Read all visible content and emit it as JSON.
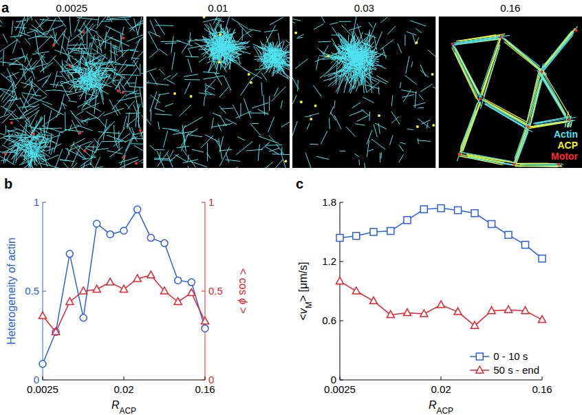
{
  "panel_a": {
    "panel": "a",
    "titles": [
      "0.0025",
      "0.01",
      "0.03",
      "0.16"
    ],
    "legend": [
      {
        "name": "Actin",
        "color": "#4fe3ef"
      },
      {
        "name": "ACP",
        "color": "#f5f51e"
      },
      {
        "name": "Motor",
        "color": "#ff2a2a"
      }
    ]
  },
  "chart_data": [
    {
      "type": "line",
      "panel": "b",
      "log": "x",
      "xlabel": [
        {
          "text": "R",
          "style": "italic"
        },
        {
          "text": "ACP",
          "style": "sub"
        }
      ],
      "ylabel": [
        {
          "text": "Heterogeneity of actin"
        }
      ],
      "y2label": [
        {
          "text": "< cos "
        },
        {
          "text": "ϕ",
          "style": "italic"
        },
        {
          "text": " >"
        }
      ],
      "x": [
        0.0025,
        0.0035,
        0.005,
        0.0071,
        0.01,
        0.0141,
        0.02,
        0.0283,
        0.04,
        0.0566,
        0.08,
        0.1131,
        0.16
      ],
      "xlim": [
        0.0025,
        0.16
      ],
      "xticks": [
        0.0025,
        0.02,
        0.16
      ],
      "ylim": [
        0,
        1
      ],
      "yticks": [
        0,
        0.5,
        1
      ],
      "y2lim": [
        0,
        1
      ],
      "y2ticks": [
        0,
        0.5,
        1
      ],
      "grid": false,
      "series": [
        {
          "color": "#2b5ce6",
          "marker": "circle",
          "axis": "y",
          "values": [
            0.09,
            0.27,
            0.71,
            0.35,
            0.88,
            0.82,
            0.84,
            0.96,
            0.8,
            0.77,
            0.56,
            0.55,
            0.29
          ]
        },
        {
          "color": "#e8202a",
          "marker": "triangle",
          "axis": "y2",
          "values": [
            0.36,
            0.27,
            0.44,
            0.5,
            0.51,
            0.55,
            0.51,
            0.57,
            0.59,
            0.5,
            0.44,
            0.49,
            0.33
          ]
        }
      ]
    },
    {
      "type": "line",
      "panel": "c",
      "log": "x",
      "xlabel": [
        {
          "text": "R",
          "style": "italic"
        },
        {
          "text": "ACP",
          "style": "sub"
        }
      ],
      "ylabel": [
        {
          "text": "<"
        },
        {
          "text": "v",
          "style": "italic"
        },
        {
          "text": "M",
          "style": "sub"
        },
        {
          "text": "> [μm/s]"
        }
      ],
      "x": [
        0.0025,
        0.0035,
        0.005,
        0.0071,
        0.01,
        0.0141,
        0.02,
        0.0283,
        0.04,
        0.0566,
        0.08,
        0.1131,
        0.16
      ],
      "xlim": [
        0.0025,
        0.16
      ],
      "xticks": [
        0.0025,
        0.02,
        0.16
      ],
      "ylim": [
        0,
        1.8
      ],
      "yticks": [
        0,
        0.6,
        1.2,
        1.8
      ],
      "grid": false,
      "legend": "lower right",
      "series": [
        {
          "name": "0 - 10 s",
          "color": "#2b5ce6",
          "marker": "square",
          "values": [
            1.44,
            1.46,
            1.5,
            1.51,
            1.62,
            1.73,
            1.74,
            1.72,
            1.69,
            1.58,
            1.47,
            1.37,
            1.23
          ]
        },
        {
          "name": "50 s - end",
          "color": "#e8202a",
          "marker": "triangle",
          "values": [
            1.0,
            0.9,
            0.8,
            0.66,
            0.68,
            0.67,
            0.76,
            0.69,
            0.55,
            0.7,
            0.71,
            0.7,
            0.61
          ]
        }
      ]
    }
  ]
}
